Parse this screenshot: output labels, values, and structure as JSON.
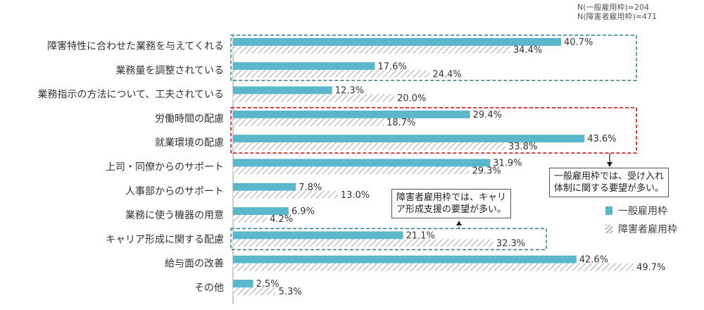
{
  "note": [
    "N(一般雇用枠)=204",
    "N(障害者雇用枠)=471"
  ],
  "annotations": {
    "general": [
      "一般雇用枠では、受け入れ",
      "体制に関する要望が多い。"
    ],
    "disability": [
      "障害者雇用枠では、キャリ",
      "ア形成支援の要望が多い。"
    ]
  },
  "colors": {
    "general": "#5bb8cc",
    "disability_hatch": "#bdbdbd",
    "box_teal": "#2f7f8f",
    "box_red": "#cc0000"
  },
  "chart_data": {
    "type": "bar",
    "orientation": "horizontal",
    "categories": [
      "障害特性に合わせた業務を与えてくれる",
      "業務量を調整されている",
      "業務指示の方法について、工夫されている",
      "労働時間の配慮",
      "就業環境の配慮",
      "上司・同僚からのサポート",
      "人事部からのサポート",
      "業務に使う機器の用意",
      "キャリア形成に関する配慮",
      "給与面の改善",
      "その他"
    ],
    "series": [
      {
        "name": "一般雇用枠",
        "values": [
          40.7,
          17.6,
          12.3,
          29.4,
          43.6,
          31.9,
          7.8,
          6.9,
          21.1,
          42.6,
          2.5
        ],
        "labels": [
          "40.7%",
          "17.6%",
          "12.3%",
          "29.4%",
          "43.6%",
          "31.9%",
          "7.8%",
          "6.9%",
          "21.1%",
          "42.6%",
          "2.5%"
        ]
      },
      {
        "name": "障害者雇用枠",
        "values": [
          34.4,
          24.4,
          20.0,
          18.7,
          33.8,
          29.3,
          13.0,
          4.2,
          32.3,
          49.7,
          5.3
        ],
        "labels": [
          "34.4%",
          "24.4%",
          "20.0%",
          "18.7%",
          "33.8%",
          "29.3%",
          "13.0%",
          "4.2%",
          "32.3%",
          "49.7%",
          "5.3%"
        ]
      }
    ],
    "xlim": [
      0,
      60
    ],
    "legend_position": "right"
  }
}
